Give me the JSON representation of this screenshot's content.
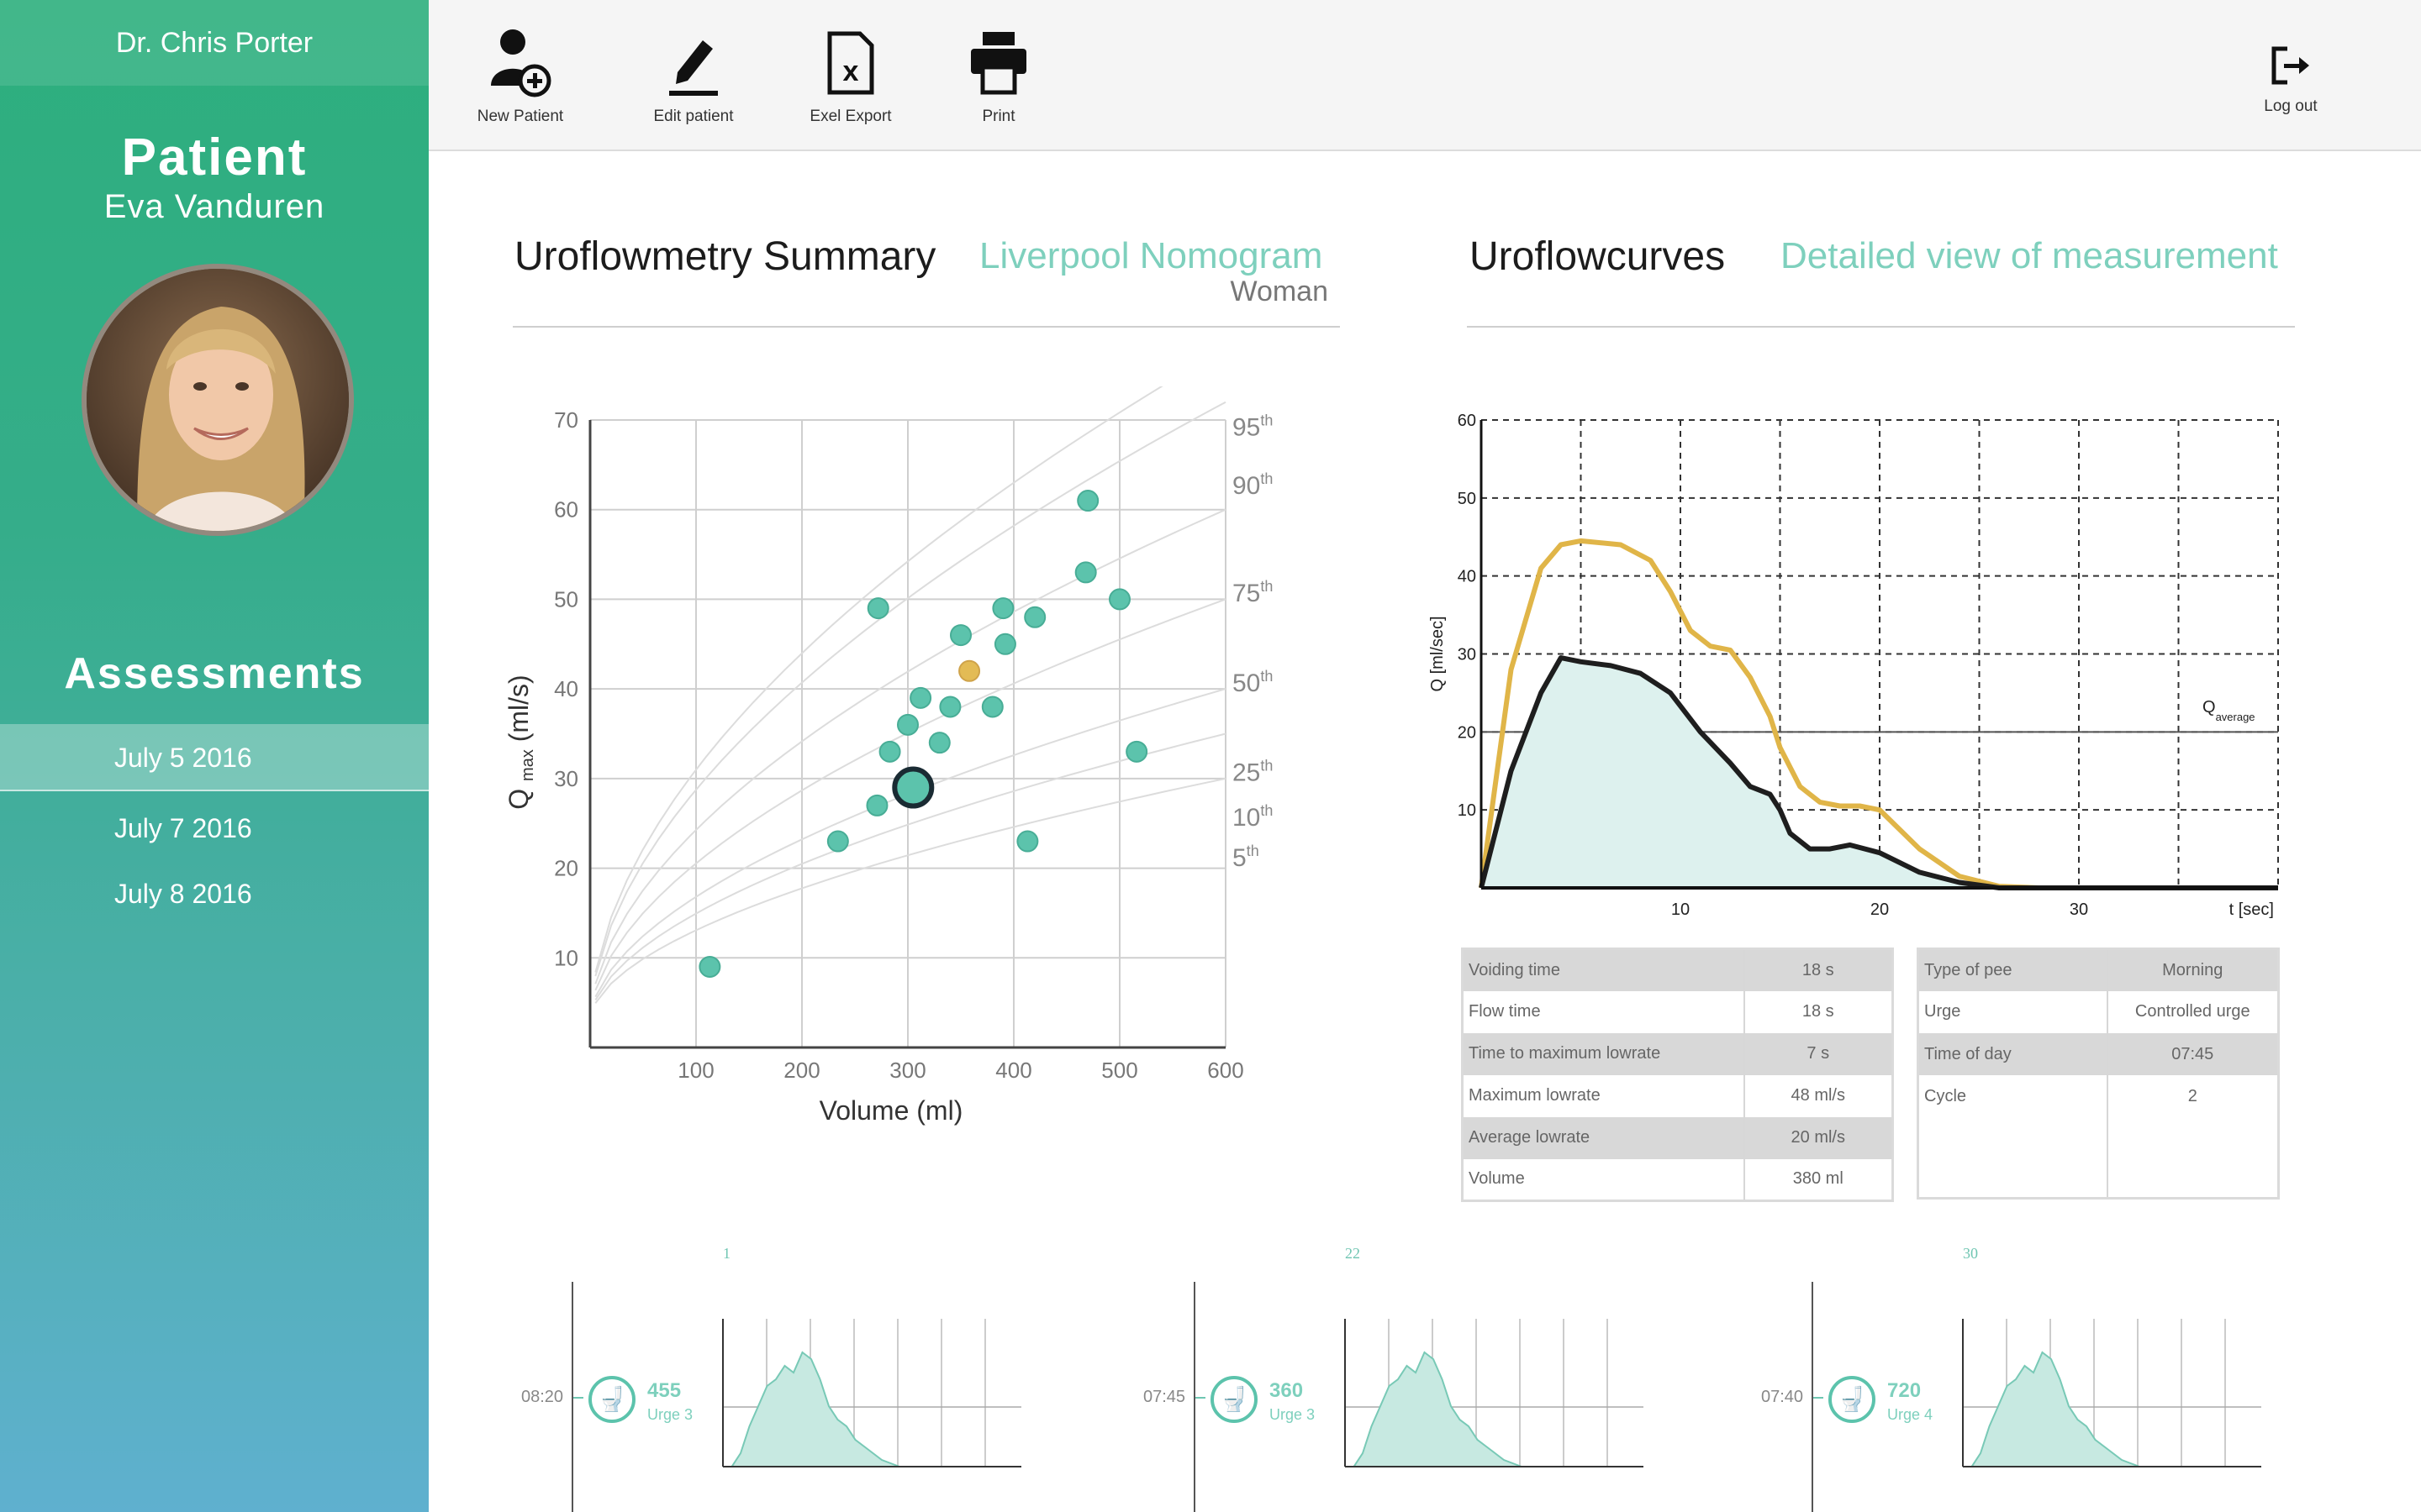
{
  "sidebar": {
    "doctor": "Dr. Chris Porter",
    "patient_heading": "Patient",
    "patient_name": "Eva Vanduren",
    "assessments_heading": "Assessments",
    "assessments": [
      {
        "label": "July 5 2016",
        "active": true
      },
      {
        "label": "July 7 2016",
        "active": false
      },
      {
        "label": "July 8 2016",
        "active": false
      }
    ]
  },
  "toolbar": {
    "new_patient": "New Patient",
    "edit_patient": "Edit patient",
    "excel_export": "Exel Export",
    "print": "Print",
    "logout": "Log out"
  },
  "summary": {
    "title": "Uroflowmetry Summary",
    "nomogram": "Liverpool Nomogram",
    "gender": "Woman"
  },
  "curves": {
    "title": "Uroflowcurves",
    "detail": "Detailed view of measurement"
  },
  "chart_data": [
    {
      "type": "scatter",
      "xlabel": "Volume (ml)",
      "ylabel_main": "Q",
      "ylabel_sub": "max",
      "ylabel_unit": "(ml/s)",
      "xlim": [
        0,
        600
      ],
      "ylim": [
        0,
        70
      ],
      "xticks": [
        100,
        200,
        300,
        400,
        500,
        600
      ],
      "yticks": [
        10,
        20,
        30,
        40,
        50,
        60,
        70
      ],
      "percentiles": [
        "95th",
        "90th",
        "75th",
        "50th",
        "25th",
        "10th",
        "5th"
      ],
      "grid": true,
      "colors": {
        "point": "#5cc3ac",
        "highlight": "#e3bb55",
        "selected": "#1a2b33"
      },
      "points": [
        {
          "x": 113,
          "y": 9
        },
        {
          "x": 234,
          "y": 23
        },
        {
          "x": 271,
          "y": 27
        },
        {
          "x": 272,
          "y": 49
        },
        {
          "x": 283,
          "y": 33
        },
        {
          "x": 300,
          "y": 36
        },
        {
          "x": 312,
          "y": 39
        },
        {
          "x": 330,
          "y": 34
        },
        {
          "x": 340,
          "y": 38
        },
        {
          "x": 350,
          "y": 46
        },
        {
          "x": 380,
          "y": 38
        },
        {
          "x": 390,
          "y": 49
        },
        {
          "x": 392,
          "y": 45
        },
        {
          "x": 413,
          "y": 23
        },
        {
          "x": 420,
          "y": 48
        },
        {
          "x": 468,
          "y": 53
        },
        {
          "x": 470,
          "y": 61
        },
        {
          "x": 500,
          "y": 50
        },
        {
          "x": 516,
          "y": 33
        }
      ],
      "highlight": {
        "x": 358,
        "y": 42
      },
      "selected": {
        "x": 305,
        "y": 29
      }
    },
    {
      "type": "area",
      "xlabel": "t [sec]",
      "ylabel": "Q [ml/sec]",
      "average_label": "Q",
      "average_sub": "average",
      "xlim": [
        0,
        40
      ],
      "ylim": [
        0,
        60
      ],
      "xticks": [
        10,
        20,
        30
      ],
      "yticks": [
        10,
        20,
        30,
        40,
        50,
        60
      ],
      "average": 20,
      "grid": true,
      "series": [
        {
          "color": "#e0b548",
          "x": [
            0,
            1.5,
            3,
            4,
            5,
            7,
            8.5,
            9.5,
            10.5,
            11.5,
            12.5,
            13.5,
            14.5,
            15,
            16,
            17,
            18,
            19,
            20,
            22,
            24,
            26,
            28,
            40
          ],
          "y": [
            0,
            28,
            41,
            44,
            44.5,
            44,
            42,
            38,
            33,
            31,
            30.5,
            27,
            22,
            18,
            13,
            11,
            10.5,
            10.5,
            10,
            5,
            1.5,
            0.2,
            0,
            0
          ]
        },
        {
          "color": "#1e1e1e",
          "fill": "#ddf1ee",
          "x": [
            0,
            1.5,
            3,
            4,
            5,
            6.5,
            8,
            9.5,
            11,
            12.5,
            13.5,
            14.5,
            15,
            15.5,
            16.5,
            17.5,
            18.5,
            20,
            22,
            24,
            26,
            40
          ],
          "y": [
            0,
            15,
            25,
            29.5,
            29,
            28.5,
            27.5,
            25,
            20,
            16,
            13,
            12,
            10,
            7,
            5,
            5,
            5.5,
            4.5,
            2,
            0.7,
            0,
            0
          ]
        }
      ]
    }
  ],
  "stats_left": [
    {
      "label": "Voiding time",
      "value": "18 s"
    },
    {
      "label": "Flow time",
      "value": "18 s"
    },
    {
      "label": "Time to maximum lowrate",
      "value": "7 s"
    },
    {
      "label": "Maximum lowrate",
      "value": "48 ml/s"
    },
    {
      "label": "Average lowrate",
      "value": "20 ml/s"
    },
    {
      "label": "Volume",
      "value": "380 ml"
    }
  ],
  "stats_right": [
    {
      "label": "Type of pee",
      "value": "Morning"
    },
    {
      "label": "Urge",
      "value": "Controlled urge"
    },
    {
      "label": "Time of day",
      "value": "07:45"
    },
    {
      "label": "Cycle",
      "value": "2"
    }
  ],
  "thumbnails": [
    {
      "day": "1",
      "time": "08:20",
      "volume": "455",
      "urge": "Urge 3"
    },
    {
      "day": "22",
      "time": "07:45",
      "volume": "360",
      "urge": "Urge 3"
    },
    {
      "day": "30",
      "time": "07:40",
      "volume": "720",
      "urge": "Urge 4"
    }
  ]
}
